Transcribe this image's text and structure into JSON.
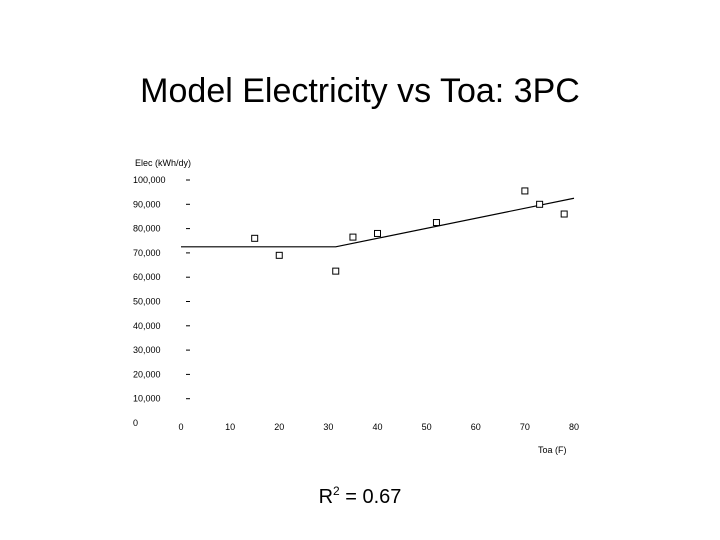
{
  "slide": {
    "title": "Model Electricity vs Toa: 3PC",
    "r2_prefix": "R",
    "r2_exp": "2",
    "r2_value": " = 0.67"
  },
  "chart_data": {
    "type": "scatter",
    "xlabel": "Toa (F)",
    "ylabel": "Elec (kWh/dy)",
    "xlim": [
      0,
      80
    ],
    "ylim": [
      0,
      100
    ],
    "x_ticks": [
      "0",
      "10",
      "20",
      "30",
      "40",
      "50",
      "60",
      "70",
      "80"
    ],
    "y_ticks": [
      "0",
      "10,000",
      "20,000",
      "30,000",
      "40,000",
      "50,000",
      "60,000",
      "70,000",
      "80,000",
      "90,000",
      "100,000"
    ],
    "grid": false,
    "points": [
      {
        "x": 15,
        "y": 76
      },
      {
        "x": 20,
        "y": 69
      },
      {
        "x": 31.5,
        "y": 62.5
      },
      {
        "x": 35,
        "y": 76.5
      },
      {
        "x": 40,
        "y": 78
      },
      {
        "x": 52,
        "y": 82.5
      },
      {
        "x": 70,
        "y": 95.5
      },
      {
        "x": 73,
        "y": 90
      },
      {
        "x": 78,
        "y": 86
      }
    ],
    "fit_line": {
      "type": "3-parameter change-point",
      "points": [
        [
          0,
          72.5
        ],
        [
          31.5,
          72.5
        ],
        [
          80,
          92.5
        ]
      ]
    }
  }
}
